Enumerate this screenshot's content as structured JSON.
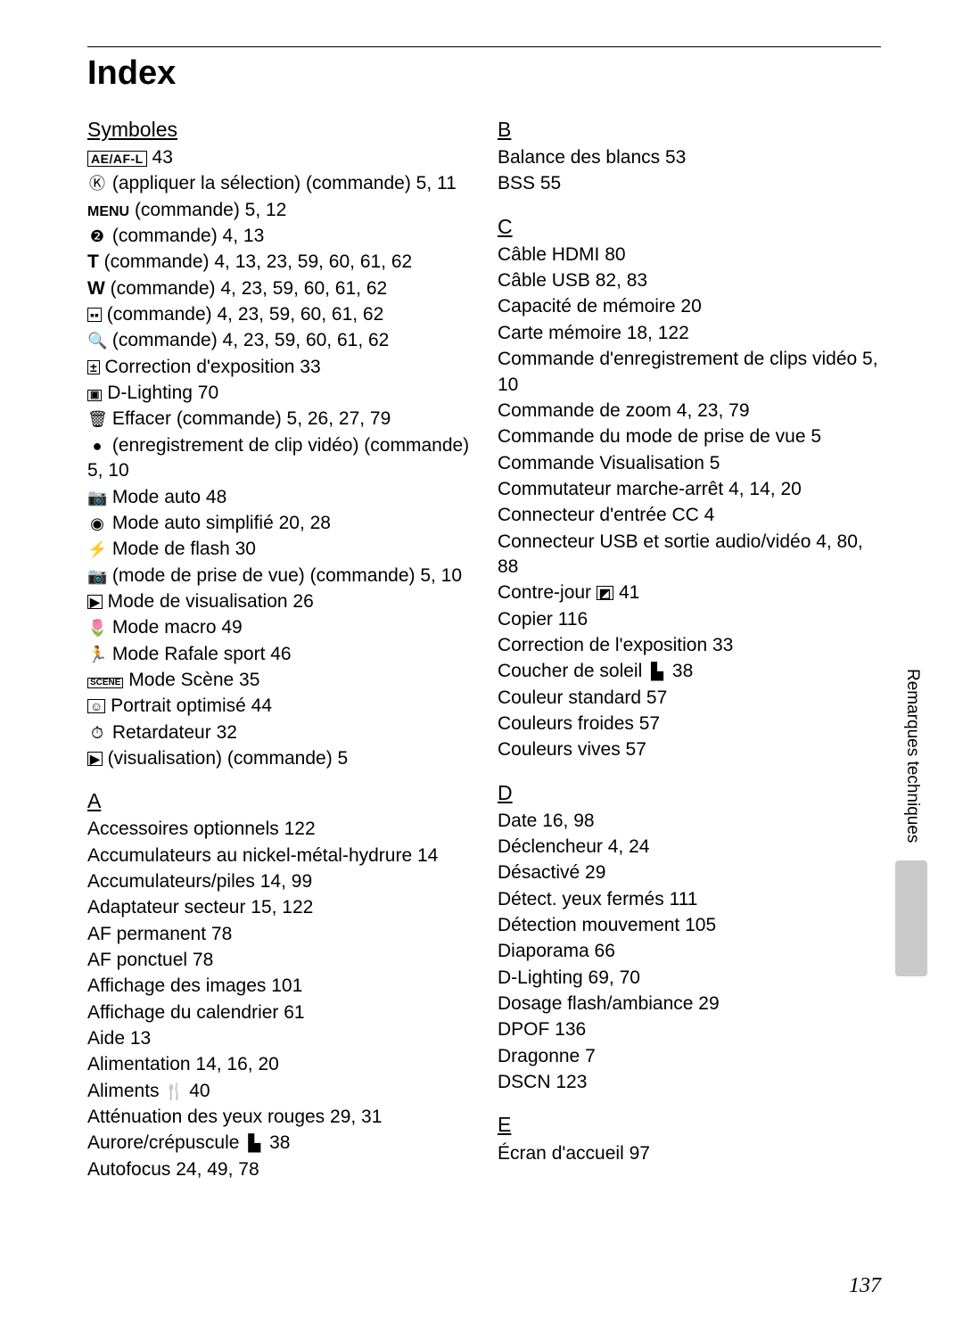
{
  "title": "Index",
  "sidebar_label": "Remarques techniques",
  "page_number": "137",
  "sections": {
    "symboles": {
      "heading": "Symboles",
      "entries": [
        {
          "prefix_html": "<span class='ael'>AE/AF-L</span>",
          "text": " 43"
        },
        {
          "prefix_html": "<span class='icon'>Ⓚ</span>",
          "text": " (appliquer la sélection) (commande) 5, 11"
        },
        {
          "prefix_html": "<b style='font-size:16px'>MENU</b>",
          "text": " (commande) 5, 12"
        },
        {
          "prefix_html": "<span class='icon'>❷</span>",
          "text": " (commande) 4, 13"
        },
        {
          "prefix_html": "<b>T</b>",
          "text": " (commande) 4, 13, 23, 59, 60, 61, 62"
        },
        {
          "prefix_html": "<b>W</b>",
          "text": " (commande) 4, 23, 59, 60, 61, 62"
        },
        {
          "prefix_html": "<span class='boxed'>▪▪</span>",
          "text": " (commande) 4, 23, 59, 60, 61, 62"
        },
        {
          "prefix_html": "<span class='icon'>🔍</span>",
          "text": " (commande) 4, 23, 59, 60, 61, 62"
        },
        {
          "prefix_html": "<span class='boxed'>±</span>",
          "text": " Correction d'exposition 33"
        },
        {
          "prefix_html": "<span class='boxed' style='font-size:11px'>▣</span>",
          "text": " D-Lighting 70"
        },
        {
          "prefix_html": "<span class='icon'>🗑</span>",
          "text": " Effacer (commande) 5, 26, 27, 79"
        },
        {
          "prefix_html": "<span class='icon'>●</span>",
          "text": " (enregistrement de clip vidéo) (commande) 5, 10"
        },
        {
          "prefix_html": "<span class='icon'>📷</span>",
          "text": " Mode auto 48"
        },
        {
          "prefix_html": "<span class='icon'>◉</span>",
          "text": " Mode auto simplifié 20, 28"
        },
        {
          "prefix_html": "<span class='icon'>⚡</span>",
          "text": " Mode de flash 30"
        },
        {
          "prefix_html": "<span class='icon'>📷</span>",
          "text": " (mode de prise de vue) (commande) 5, 10"
        },
        {
          "prefix_html": "<span class='boxed'>▶</span>",
          "text": " Mode de visualisation 26"
        },
        {
          "prefix_html": "<span class='icon'>🌷</span>",
          "text": " Mode macro 49"
        },
        {
          "prefix_html": "<span class='icon'>🏃</span>",
          "text": " Mode Rafale sport 46"
        },
        {
          "prefix_html": "<span class='boxed' style='font-size:10px'>SCENE</span>",
          "text": " Mode Scène 35"
        },
        {
          "prefix_html": "<span class='boxed'>☺</span>",
          "text": " Portrait optimisé 44"
        },
        {
          "prefix_html": "<span class='icon'>⏱</span>",
          "text": " Retardateur 32"
        },
        {
          "prefix_html": "<span class='boxed'>▶</span>",
          "text": " (visualisation) (commande) 5"
        }
      ]
    },
    "A": {
      "heading": "A",
      "entries": [
        {
          "text": "Accessoires optionnels 122"
        },
        {
          "text": "Accumulateurs au nickel-métal-hydrure 14"
        },
        {
          "text": "Accumulateurs/piles 14, 99"
        },
        {
          "text": "Adaptateur secteur 15, 122"
        },
        {
          "text": "AF permanent 78"
        },
        {
          "text": "AF ponctuel 78"
        },
        {
          "text": "Affichage des images 101"
        },
        {
          "text": "Affichage du calendrier 61"
        },
        {
          "text": "Aide 13"
        },
        {
          "text": "Alimentation 14, 16, 20"
        },
        {
          "text_html": "Aliments <span class='icon'>🍴</span> 40"
        },
        {
          "text": "Atténuation des yeux rouges 29, 31"
        },
        {
          "text_html": "Aurore/crépuscule <span class='icon'>▙</span> 38"
        },
        {
          "text": "Autofocus 24, 49, 78"
        }
      ]
    },
    "B": {
      "heading": "B",
      "entries": [
        {
          "text": "Balance des blancs 53"
        },
        {
          "text": "BSS 55"
        }
      ]
    },
    "C": {
      "heading": "C",
      "entries": [
        {
          "text": "Câble HDMI 80"
        },
        {
          "text": "Câble USB 82, 83"
        },
        {
          "text": "Capacité de mémoire 20"
        },
        {
          "text": "Carte mémoire 18, 122"
        },
        {
          "text": "Commande d'enregistrement de clips vidéo 5, 10"
        },
        {
          "text": "Commande de zoom 4, 23, 79"
        },
        {
          "text": "Commande du mode de prise de vue 5"
        },
        {
          "text": "Commande Visualisation 5"
        },
        {
          "text": "Commutateur marche-arrêt 4, 14, 20"
        },
        {
          "text": "Connecteur d'entrée CC 4"
        },
        {
          "text": "Connecteur USB et sortie audio/vidéo 4, 80, 88"
        },
        {
          "text_html": "Contre-jour <span class='boxed'>◩</span> 41"
        },
        {
          "text": "Copier 116"
        },
        {
          "text": "Correction de l'exposition 33"
        },
        {
          "text_html": "Coucher de soleil <span class='icon'>▙</span> 38"
        },
        {
          "text": "Couleur standard 57"
        },
        {
          "text": "Couleurs froides 57"
        },
        {
          "text": "Couleurs vives 57"
        }
      ]
    },
    "D": {
      "heading": "D",
      "entries": [
        {
          "text": "Date 16, 98"
        },
        {
          "text": "Déclencheur 4, 24"
        },
        {
          "text": "Désactivé 29"
        },
        {
          "text": "Détect. yeux fermés 111"
        },
        {
          "text": "Détection mouvement 105"
        },
        {
          "text": "Diaporama 66"
        },
        {
          "text": "D-Lighting 69, 70"
        },
        {
          "text": "Dosage flash/ambiance 29"
        },
        {
          "text": "DPOF 136"
        },
        {
          "text": "Dragonne 7"
        },
        {
          "text": "DSCN 123"
        }
      ]
    },
    "E": {
      "heading": "E",
      "entries": [
        {
          "text": "Écran d'accueil 97"
        }
      ]
    }
  },
  "left_order": [
    "symboles",
    "A"
  ],
  "right_order": [
    "B",
    "C",
    "D",
    "E"
  ]
}
